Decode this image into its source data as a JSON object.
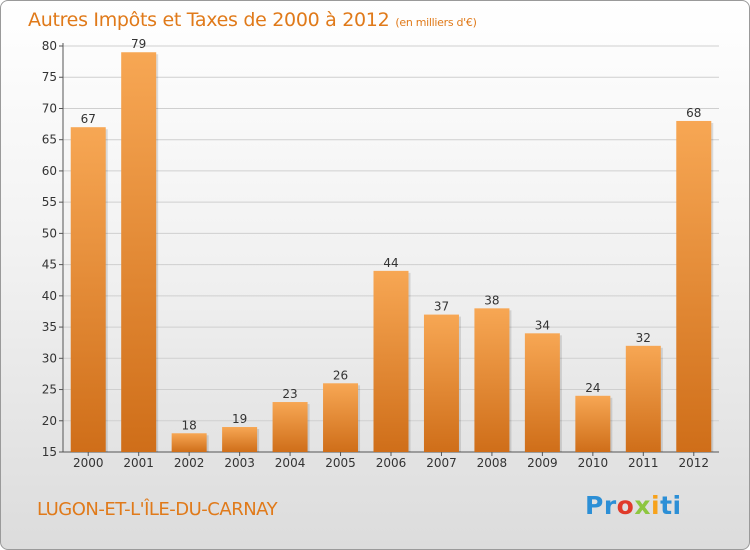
{
  "header": {
    "title": "Autres Impôts et Taxes de 2000 à 2012",
    "unit": "(en milliers d'€)"
  },
  "footer": {
    "commune": "LUGON-ET-L'ÎLE-DU-CARNAY",
    "logo_parts": [
      "Pr",
      "o",
      "x",
      "i",
      "ti"
    ]
  },
  "colors": {
    "accent": "#e07a1a",
    "bar_light": "#f7a754",
    "bar_dark": "#cf6e19",
    "grid": "#cfcfcf"
  },
  "chart_data": {
    "type": "bar",
    "title": "Autres Impôts et Taxes de 2000 à 2012",
    "subtitle": "(en milliers d'€)",
    "xlabel": "",
    "ylabel": "",
    "categories": [
      "2000",
      "2001",
      "2002",
      "2003",
      "2004",
      "2005",
      "2006",
      "2007",
      "2008",
      "2009",
      "2010",
      "2011",
      "2012"
    ],
    "values": [
      67,
      79,
      18,
      19,
      23,
      26,
      44,
      37,
      38,
      34,
      24,
      32,
      68
    ],
    "ylim": [
      15,
      80
    ],
    "yticks": [
      15,
      20,
      25,
      30,
      35,
      40,
      45,
      50,
      55,
      60,
      65,
      70,
      75,
      80
    ],
    "grid": true,
    "legend": "none"
  }
}
